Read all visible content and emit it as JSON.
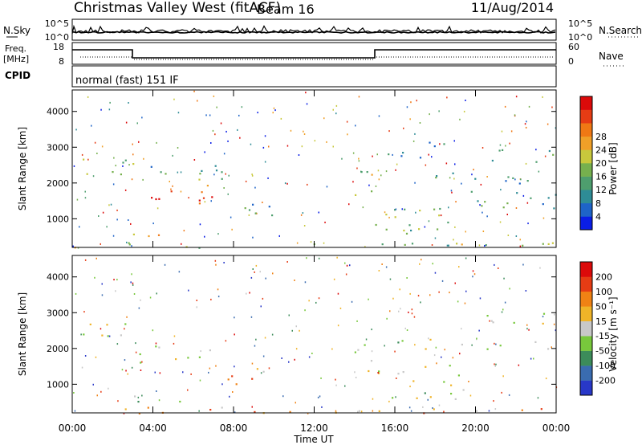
{
  "header": {
    "title": "Christmas Valley West (fitACF)",
    "beam": "Beam 16",
    "date": "11/Aug/2014"
  },
  "panels": {
    "nsky_label": "N.Sky",
    "nsearch_label": "N.Search",
    "freq_label_1": "Freq.",
    "freq_label_2": "[MHz]",
    "nave_label": "Nave",
    "cpid_label": "CPID",
    "cpid_value": "normal (fast) 151 IF",
    "nsky_ticks": [
      "10^5",
      "10^0"
    ],
    "nsearch_ticks": [
      "10^5",
      "10^0"
    ],
    "freq_ticks": [
      "18",
      "8"
    ],
    "nave_ticks": [
      "60",
      "0"
    ]
  },
  "chart_data": [
    {
      "type": "heatmap",
      "name": "power",
      "xlabel": "",
      "ylabel": "Slant Range [km]",
      "x_ticks": [
        "00:00",
        "04:00",
        "08:00",
        "12:00",
        "16:00",
        "20:00",
        "00:00"
      ],
      "y_ticks": [
        1000,
        2000,
        3000,
        4000
      ],
      "ylim": [
        200,
        4600
      ],
      "xlim_hours": [
        0,
        24
      ],
      "colorbar": {
        "label": "Power [dB]",
        "ticks": [
          4,
          8,
          12,
          16,
          20,
          24,
          28
        ],
        "colors": [
          "#0a1ee6",
          "#1e64c8",
          "#2e8c96",
          "#4e9e6e",
          "#76b04e",
          "#c8c83c",
          "#f0a028",
          "#f07814",
          "#e63c14",
          "#dc0a0a"
        ]
      },
      "bands": [
        {
          "t": [
            0.0,
            3.0
          ],
          "r": [
            2150,
            2750
          ],
          "level": 0.45
        },
        {
          "t": [
            3.0,
            7.0
          ],
          "r": [
            1350,
            1950
          ],
          "level": 0.9
        },
        {
          "t": [
            5.5,
            7.5
          ],
          "r": [
            1900,
            2450
          ],
          "level": 0.55
        },
        {
          "t": [
            3.0,
            6.0
          ],
          "r": [
            500,
            800
          ],
          "level": 0.6
        },
        {
          "t": [
            7.2,
            10.0
          ],
          "r": [
            1000,
            1600
          ],
          "level": 0.35
        },
        {
          "t": [
            3.5,
            8.0
          ],
          "r": [
            2100,
            2500
          ],
          "level": 0.3
        },
        {
          "t": [
            14.0,
            15.0
          ],
          "r": [
            1300,
            2500
          ],
          "level": 0.45
        },
        {
          "t": [
            15.0,
            19.5
          ],
          "r": [
            600,
            1600
          ],
          "level": 0.4
        },
        {
          "t": [
            16.0,
            24.0
          ],
          "r": [
            2000,
            2300
          ],
          "level": 0.3
        },
        {
          "t": [
            18.0,
            24.0
          ],
          "r": [
            1300,
            1800
          ],
          "level": 0.3
        },
        {
          "t": [
            20.0,
            24.0
          ],
          "r": [
            2600,
            3000
          ],
          "level": 0.3
        },
        {
          "t": [
            15.5,
            19.0
          ],
          "r": [
            2700,
            3200
          ],
          "level": 0.25
        },
        {
          "t": [
            0.0,
            24.0
          ],
          "r": [
            200,
            380
          ],
          "level": 0.45
        }
      ]
    },
    {
      "type": "heatmap",
      "name": "velocity",
      "xlabel": "Time UT",
      "ylabel": "Slant Range [km]",
      "x_ticks": [
        "00:00",
        "04:00",
        "08:00",
        "12:00",
        "16:00",
        "20:00",
        "00:00"
      ],
      "y_ticks": [
        1000,
        2000,
        3000,
        4000
      ],
      "ylim": [
        200,
        4600
      ],
      "xlim_hours": [
        0,
        24
      ],
      "colorbar": {
        "label": "Velocity [m s⁻¹]",
        "ticks": [
          200,
          100,
          50,
          15,
          -15,
          -50,
          -100,
          -200
        ],
        "colors": [
          "#2838c8",
          "#3a6cb0",
          "#3c8c5a",
          "#78c83c",
          "#c8c8c8",
          "#f0b428",
          "#f08214",
          "#e63c14",
          "#dc0a0a"
        ]
      },
      "bands": [
        {
          "t": [
            0.0,
            3.0
          ],
          "r": [
            2150,
            2750
          ],
          "level": 0.5
        },
        {
          "t": [
            3.0,
            7.0
          ],
          "r": [
            1600,
            2100
          ],
          "level": 0.5
        },
        {
          "t": [
            3.0,
            6.0
          ],
          "r": [
            500,
            800
          ],
          "level": 0.3
        },
        {
          "t": [
            7.2,
            10.0
          ],
          "r": [
            1000,
            1600
          ],
          "level": 0.68
        },
        {
          "t": [
            14.0,
            15.0
          ],
          "r": [
            1300,
            2500
          ],
          "level": 0.5
        },
        {
          "t": [
            15.0,
            19.5
          ],
          "r": [
            600,
            1600
          ],
          "level": 0.5
        },
        {
          "t": [
            16.0,
            24.0
          ],
          "r": [
            2000,
            2300
          ],
          "level": 0.5
        },
        {
          "t": [
            20.0,
            24.0
          ],
          "r": [
            2600,
            3000
          ],
          "level": 0.5
        },
        {
          "t": [
            0.0,
            24.0
          ],
          "r": [
            200,
            380
          ],
          "level": 0.62
        }
      ]
    }
  ]
}
